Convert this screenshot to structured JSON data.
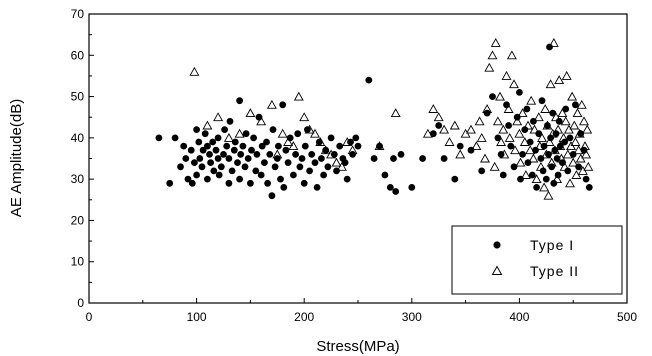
{
  "chart_data": {
    "type": "scatter",
    "xlabel": "Stress(MPa)",
    "ylabel": "AE Amplitude(dB)",
    "xlim": [
      0,
      500
    ],
    "ylim": [
      0,
      70
    ],
    "x_ticks": [
      "0",
      "100",
      "200",
      "300",
      "400",
      "500"
    ],
    "y_ticks": [
      "0",
      "10",
      "20",
      "30",
      "40",
      "50",
      "60",
      "70"
    ],
    "grid": false,
    "legend_position": "bottom-right",
    "series": [
      {
        "name": "Type I",
        "marker": "filled-circle",
        "color": "#000000",
        "points": [
          [
            65,
            40
          ],
          [
            75,
            29
          ],
          [
            80,
            40
          ],
          [
            85,
            33
          ],
          [
            88,
            38
          ],
          [
            90,
            35
          ],
          [
            92,
            30
          ],
          [
            95,
            37
          ],
          [
            96,
            29
          ],
          [
            98,
            34
          ],
          [
            100,
            42
          ],
          [
            100,
            31
          ],
          [
            102,
            39
          ],
          [
            103,
            35
          ],
          [
            105,
            33
          ],
          [
            106,
            37
          ],
          [
            108,
            41
          ],
          [
            110,
            38
          ],
          [
            110,
            30
          ],
          [
            112,
            36
          ],
          [
            113,
            34
          ],
          [
            115,
            39
          ],
          [
            116,
            32
          ],
          [
            118,
            37
          ],
          [
            120,
            35
          ],
          [
            120,
            40
          ],
          [
            121,
            31
          ],
          [
            123,
            33
          ],
          [
            125,
            36
          ],
          [
            126,
            42
          ],
          [
            128,
            38
          ],
          [
            130,
            29
          ],
          [
            130,
            35
          ],
          [
            131,
            44
          ],
          [
            133,
            32
          ],
          [
            135,
            37
          ],
          [
            136,
            39
          ],
          [
            138,
            34
          ],
          [
            140,
            49
          ],
          [
            140,
            30
          ],
          [
            141,
            36
          ],
          [
            143,
            38
          ],
          [
            145,
            33
          ],
          [
            146,
            41
          ],
          [
            148,
            35
          ],
          [
            150,
            29
          ],
          [
            151,
            37
          ],
          [
            153,
            40
          ],
          [
            155,
            32
          ],
          [
            156,
            36
          ],
          [
            158,
            45
          ],
          [
            160,
            31
          ],
          [
            161,
            38
          ],
          [
            163,
            34
          ],
          [
            165,
            39
          ],
          [
            166,
            29
          ],
          [
            168,
            36
          ],
          [
            170,
            26
          ],
          [
            171,
            42
          ],
          [
            173,
            33
          ],
          [
            175,
            35
          ],
          [
            176,
            38
          ],
          [
            178,
            30
          ],
          [
            180,
            48
          ],
          [
            181,
            28
          ],
          [
            183,
            37
          ],
          [
            185,
            34
          ],
          [
            187,
            40
          ],
          [
            190,
            31
          ],
          [
            192,
            36
          ],
          [
            194,
            41
          ],
          [
            196,
            33
          ],
          [
            198,
            35
          ],
          [
            200,
            29
          ],
          [
            201,
            38
          ],
          [
            203,
            42
          ],
          [
            205,
            32
          ],
          [
            207,
            36
          ],
          [
            210,
            34
          ],
          [
            212,
            28
          ],
          [
            214,
            39
          ],
          [
            216,
            35
          ],
          [
            218,
            31
          ],
          [
            220,
            37
          ],
          [
            222,
            33
          ],
          [
            225,
            40
          ],
          [
            228,
            36
          ],
          [
            230,
            32
          ],
          [
            233,
            38
          ],
          [
            236,
            35
          ],
          [
            238,
            34
          ],
          [
            240,
            30
          ],
          [
            243,
            39
          ],
          [
            245,
            36
          ],
          [
            248,
            40
          ],
          [
            250,
            38
          ],
          [
            260,
            54
          ],
          [
            265,
            35
          ],
          [
            270,
            38
          ],
          [
            275,
            31
          ],
          [
            280,
            28
          ],
          [
            283,
            35
          ],
          [
            285,
            27
          ],
          [
            290,
            36
          ],
          [
            300,
            28
          ],
          [
            310,
            35
          ],
          [
            320,
            41
          ],
          [
            325,
            43
          ],
          [
            330,
            35
          ],
          [
            340,
            30
          ],
          [
            345,
            38
          ],
          [
            355,
            37
          ],
          [
            365,
            32
          ],
          [
            370,
            46
          ],
          [
            375,
            50
          ],
          [
            380,
            40
          ],
          [
            383,
            36
          ],
          [
            385,
            31
          ],
          [
            388,
            48
          ],
          [
            390,
            43
          ],
          [
            392,
            38
          ],
          [
            395,
            33
          ],
          [
            398,
            45
          ],
          [
            400,
            51
          ],
          [
            401,
            30
          ],
          [
            403,
            36
          ],
          [
            405,
            42
          ],
          [
            407,
            47
          ],
          [
            408,
            34
          ],
          [
            410,
            39
          ],
          [
            412,
            31
          ],
          [
            413,
            44
          ],
          [
            415,
            37
          ],
          [
            416,
            28
          ],
          [
            418,
            41
          ],
          [
            420,
            35
          ],
          [
            421,
            49
          ],
          [
            422,
            32
          ],
          [
            423,
            38
          ],
          [
            425,
            30
          ],
          [
            426,
            43
          ],
          [
            427,
            36
          ],
          [
            428,
            62
          ],
          [
            429,
            40
          ],
          [
            430,
            33
          ],
          [
            431,
            46
          ],
          [
            432,
            29
          ],
          [
            433,
            37
          ],
          [
            434,
            41
          ],
          [
            435,
            35
          ],
          [
            436,
            31
          ],
          [
            437,
            44
          ],
          [
            438,
            38
          ],
          [
            440,
            34
          ],
          [
            442,
            39
          ],
          [
            443,
            47
          ],
          [
            445,
            32
          ],
          [
            447,
            40
          ],
          [
            450,
            36
          ],
          [
            452,
            48
          ],
          [
            455,
            33
          ],
          [
            457,
            41
          ],
          [
            460,
            37
          ],
          [
            462,
            30
          ],
          [
            465,
            28
          ]
        ]
      },
      {
        "name": "Type II",
        "marker": "open-triangle",
        "color": "#000000",
        "points": [
          [
            98,
            56
          ],
          [
            110,
            43
          ],
          [
            120,
            45
          ],
          [
            130,
            40
          ],
          [
            140,
            41
          ],
          [
            150,
            46
          ],
          [
            160,
            44
          ],
          [
            170,
            48
          ],
          [
            175,
            36
          ],
          [
            180,
            41
          ],
          [
            185,
            39
          ],
          [
            190,
            38
          ],
          [
            195,
            50
          ],
          [
            200,
            45
          ],
          [
            205,
            42
          ],
          [
            210,
            41
          ],
          [
            215,
            39
          ],
          [
            220,
            37
          ],
          [
            225,
            36
          ],
          [
            230,
            34
          ],
          [
            235,
            33
          ],
          [
            240,
            39
          ],
          [
            245,
            37
          ],
          [
            270,
            38
          ],
          [
            285,
            46
          ],
          [
            315,
            41
          ],
          [
            320,
            47
          ],
          [
            325,
            45
          ],
          [
            330,
            42
          ],
          [
            335,
            39
          ],
          [
            340,
            43
          ],
          [
            345,
            36
          ],
          [
            350,
            41
          ],
          [
            355,
            42
          ],
          [
            360,
            38
          ],
          [
            363,
            44
          ],
          [
            365,
            40
          ],
          [
            368,
            35
          ],
          [
            370,
            47
          ],
          [
            372,
            57
          ],
          [
            375,
            60
          ],
          [
            377,
            33
          ],
          [
            378,
            63
          ],
          [
            380,
            44
          ],
          [
            382,
            50
          ],
          [
            383,
            39
          ],
          [
            385,
            42
          ],
          [
            386,
            36
          ],
          [
            388,
            55
          ],
          [
            390,
            47
          ],
          [
            391,
            40
          ],
          [
            393,
            60
          ],
          [
            395,
            53
          ],
          [
            396,
            37
          ],
          [
            398,
            44
          ],
          [
            400,
            41
          ],
          [
            401,
            34
          ],
          [
            403,
            46
          ],
          [
            405,
            39
          ],
          [
            406,
            31
          ],
          [
            408,
            43
          ],
          [
            410,
            37
          ],
          [
            411,
            49
          ],
          [
            413,
            35
          ],
          [
            414,
            42
          ],
          [
            416,
            30
          ],
          [
            418,
            45
          ],
          [
            419,
            38
          ],
          [
            420,
            33
          ],
          [
            421,
            40
          ],
          [
            423,
            28
          ],
          [
            424,
            47
          ],
          [
            425,
            36
          ],
          [
            426,
            43
          ],
          [
            427,
            26
          ],
          [
            428,
            39
          ],
          [
            429,
            53
          ],
          [
            430,
            34
          ],
          [
            431,
            41
          ],
          [
            432,
            63
          ],
          [
            433,
            37
          ],
          [
            434,
            45
          ],
          [
            435,
            30
          ],
          [
            436,
            42
          ],
          [
            437,
            54
          ],
          [
            438,
            38
          ],
          [
            439,
            35
          ],
          [
            440,
            46
          ],
          [
            441,
            40
          ],
          [
            442,
            33
          ],
          [
            443,
            44
          ],
          [
            444,
            55
          ],
          [
            445,
            36
          ],
          [
            446,
            42
          ],
          [
            447,
            29
          ],
          [
            448,
            38
          ],
          [
            449,
            50
          ],
          [
            450,
            34
          ],
          [
            451,
            43
          ],
          [
            452,
            39
          ],
          [
            453,
            31
          ],
          [
            454,
            46
          ],
          [
            455,
            37
          ],
          [
            456,
            41
          ],
          [
            457,
            35
          ],
          [
            458,
            48
          ],
          [
            459,
            32
          ],
          [
            460,
            44
          ],
          [
            461,
            38
          ],
          [
            462,
            36
          ],
          [
            463,
            42
          ],
          [
            464,
            33
          ]
        ]
      }
    ]
  }
}
